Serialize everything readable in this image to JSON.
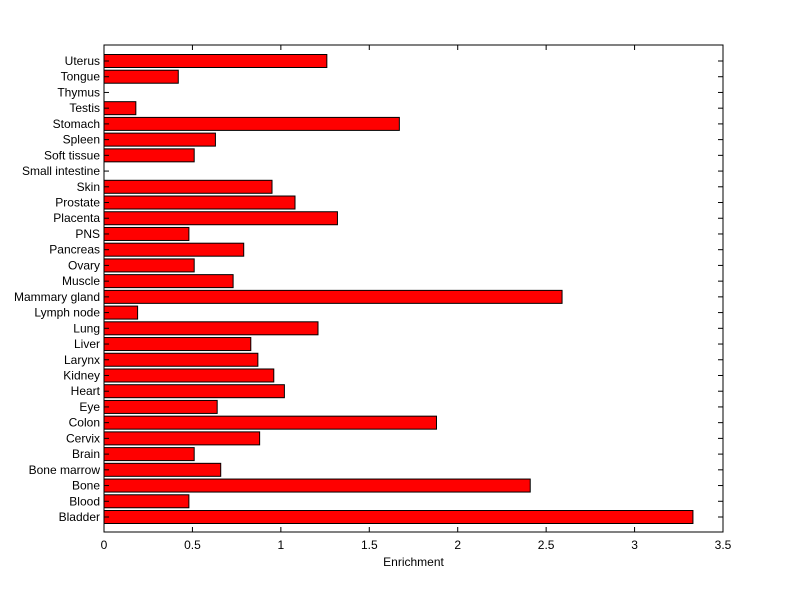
{
  "chart_data": {
    "type": "bar",
    "orientation": "horizontal",
    "title": "",
    "xlabel": "Enrichment",
    "ylabel": "",
    "xlim": [
      0,
      3.5
    ],
    "xticks": [
      "0",
      "0.5",
      "1",
      "1.5",
      "2",
      "2.5",
      "3",
      "3.5"
    ],
    "grid": false,
    "legend": "none",
    "bar_color": "#ff0000",
    "bar_edge_color": "#000000",
    "categories": [
      "Bladder",
      "Blood",
      "Bone",
      "Bone marrow",
      "Brain",
      "Cervix",
      "Colon",
      "Eye",
      "Heart",
      "Kidney",
      "Larynx",
      "Liver",
      "Lung",
      "Lymph node",
      "Mammary gland",
      "Muscle",
      "Ovary",
      "Pancreas",
      "PNS",
      "Placenta",
      "Prostate",
      "Skin",
      "Small intestine",
      "Soft tissue",
      "Spleen",
      "Stomach",
      "Testis",
      "Thymus",
      "Tongue",
      "Uterus"
    ],
    "values": [
      3.33,
      0.48,
      2.41,
      0.66,
      0.51,
      0.88,
      1.88,
      0.64,
      1.02,
      0.96,
      0.87,
      0.83,
      1.21,
      0.19,
      2.59,
      0.73,
      0.51,
      0.79,
      0.48,
      1.32,
      1.08,
      0.95,
      0,
      0.51,
      0.63,
      1.67,
      0.18,
      0,
      0.42,
      1.26
    ]
  }
}
